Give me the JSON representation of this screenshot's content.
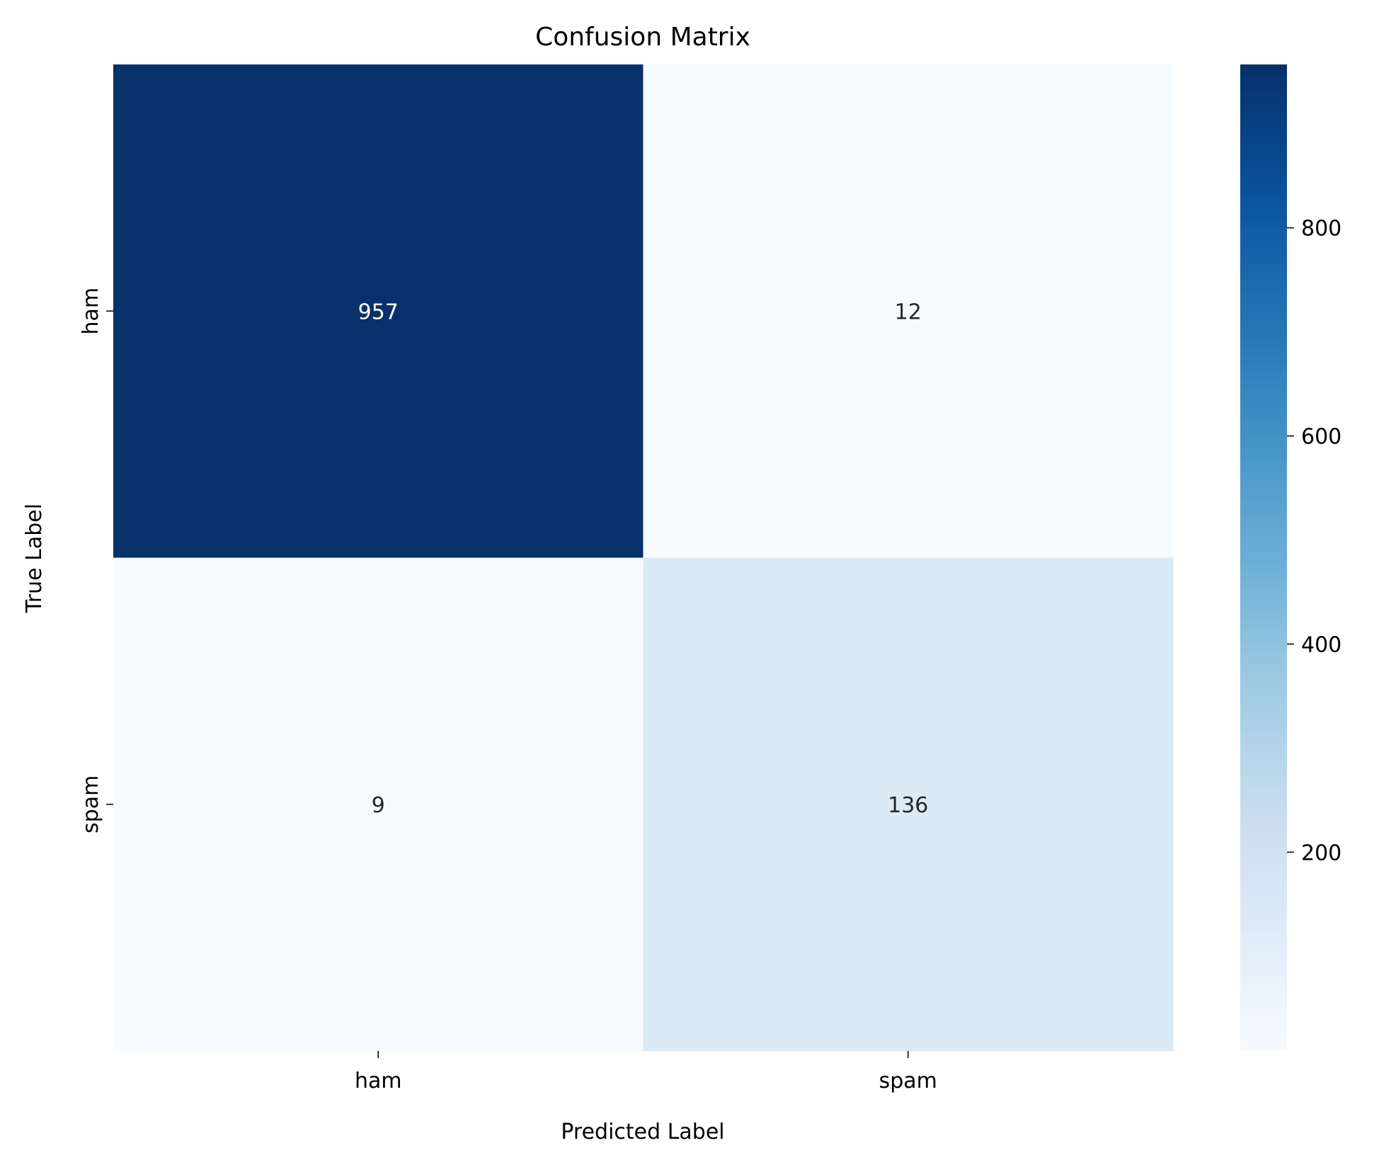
{
  "chart_data": {
    "type": "heatmap",
    "title": "Confusion Matrix",
    "xlabel": "Predicted Label",
    "ylabel": "True Label",
    "x_categories": [
      "ham",
      "spam"
    ],
    "y_categories": [
      "ham",
      "spam"
    ],
    "values": [
      [
        957,
        12
      ],
      [
        9,
        136
      ]
    ],
    "colormap": "Blues",
    "colorbar": {
      "ticks": [
        200,
        400,
        600,
        800
      ],
      "range": [
        9,
        957
      ]
    },
    "annotation_colors": {
      "dark_cell": "#ffffff",
      "light_cell": "#262626"
    }
  }
}
